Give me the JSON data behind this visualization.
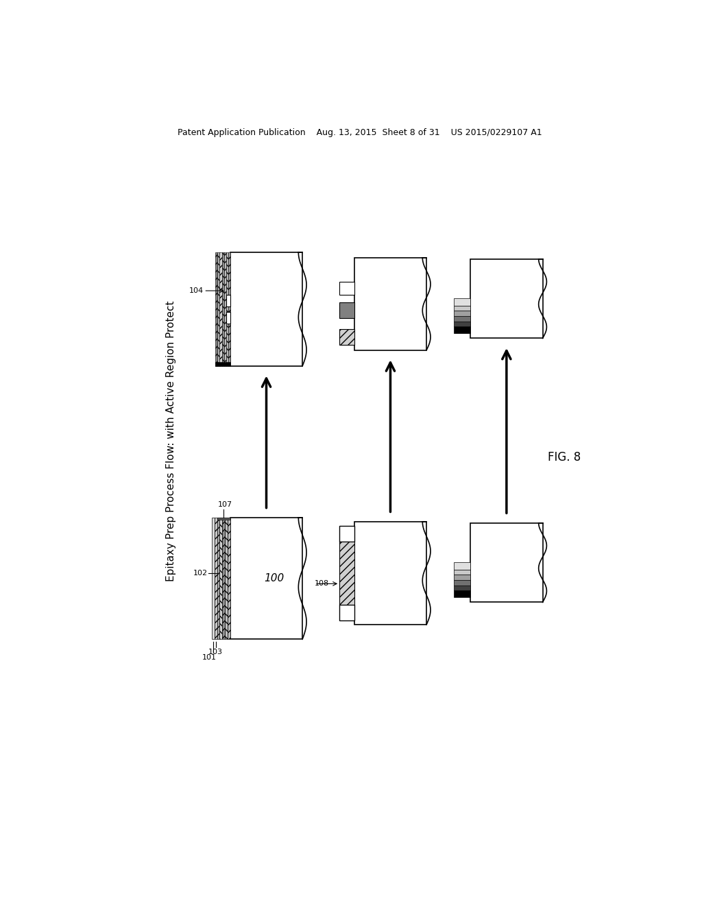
{
  "title_text": "Patent Application Publication    Aug. 13, 2015  Sheet 8 of 31    US 2015/0229107 A1",
  "fig_label": "FIG. 8",
  "rotated_label": "Epitaxy Prep Process Flow: with Active Region Protect",
  "background_color": "#ffffff",
  "text_color": "#000000"
}
